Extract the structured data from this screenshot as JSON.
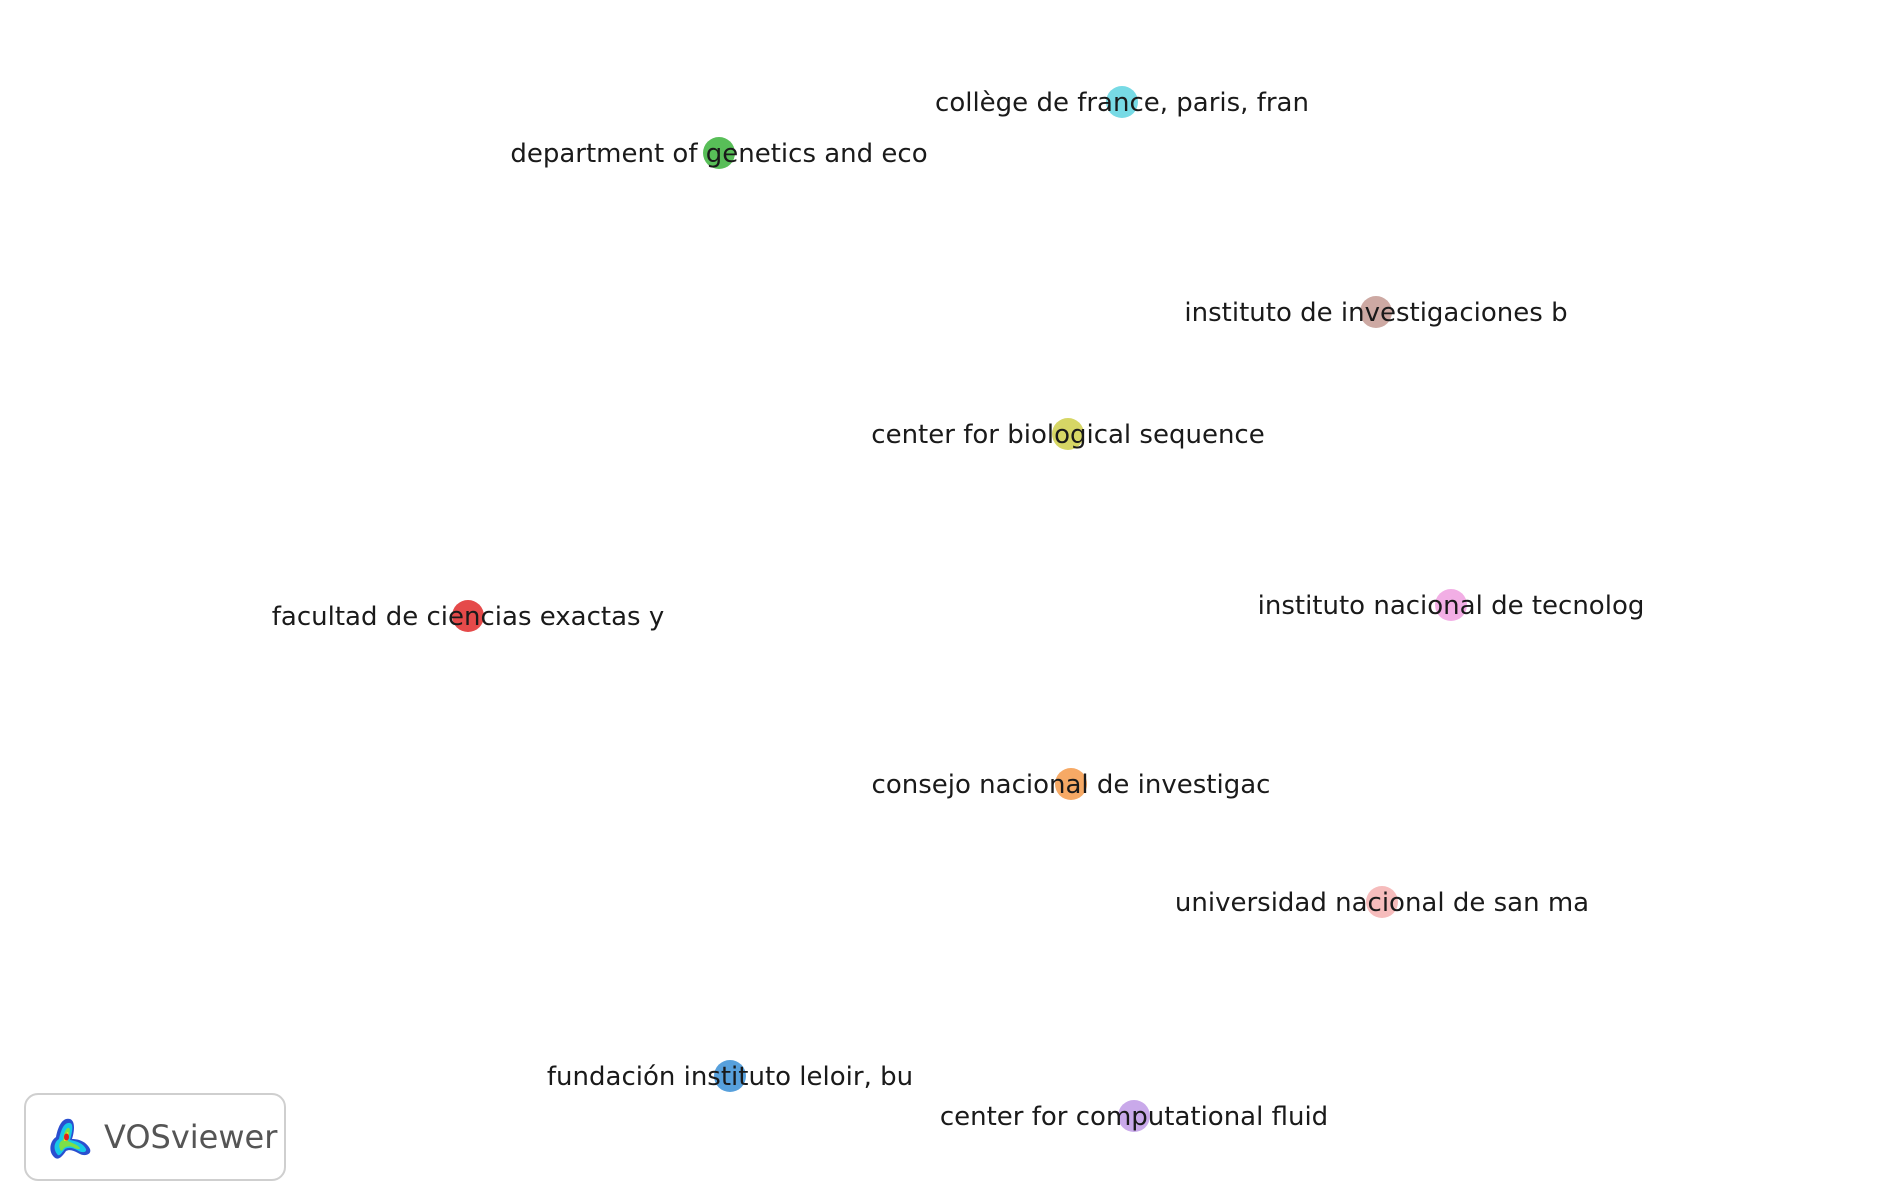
{
  "network": {
    "nodes": [
      {
        "label": "collège de france, paris, fran",
        "color": "#5fd3e0"
      },
      {
        "label": "department of genetics and eco",
        "color": "#3bb33b"
      },
      {
        "label": "instituto de investigaciones b",
        "color": "#c49a93"
      },
      {
        "label": "center for biological sequence",
        "color": "#cfcf4a"
      },
      {
        "label": "facultad de ciencias exactas y",
        "color": "#e02a2a"
      },
      {
        "label": "instituto nacional de tecnolog",
        "color": "#f0a0e0"
      },
      {
        "label": "consejo nacional de investigac",
        "color": "#f59a4a"
      },
      {
        "label": "universidad nacional de san ma",
        "color": "#f4b0b0"
      },
      {
        "label": "fundación instituto leloir, bu",
        "color": "#3a8fd6"
      },
      {
        "label": "center for computational fluid",
        "color": "#c09ae6"
      }
    ]
  },
  "logo": {
    "text": "VOSviewer",
    "icon": "vosviewer-logo-icon"
  }
}
